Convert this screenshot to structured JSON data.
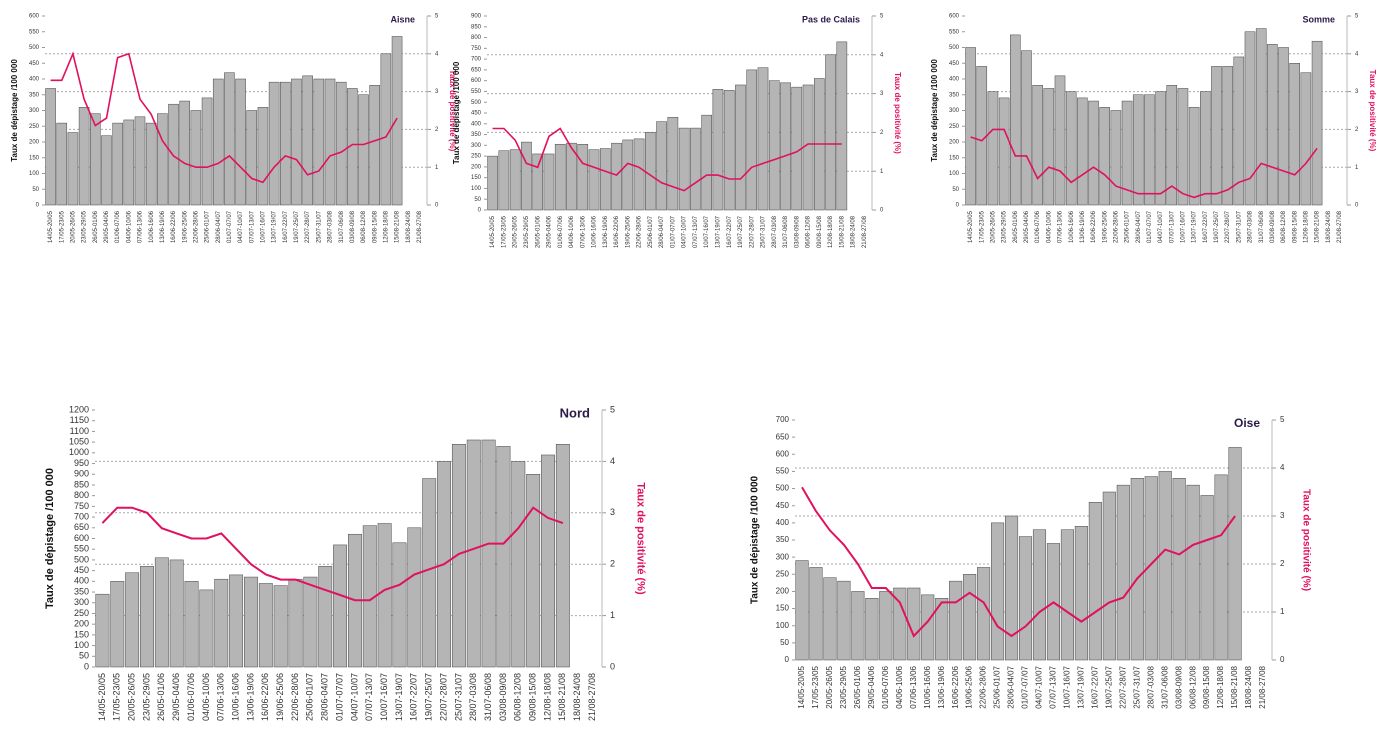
{
  "chart_data": [
    {
      "type": "combo",
      "title": "Aisne",
      "ylabel": "Taux de dépistage /100 000",
      "y2label": "Taux de positivité (%)",
      "categories": [
        "14/05-20/05",
        "17/05-23/05",
        "20/05-26/05",
        "23/05-29/05",
        "26/05-01/06",
        "29/05-04/06",
        "01/06-07/06",
        "04/06-10/06",
        "07/06-13/06",
        "10/06-16/06",
        "13/06-19/06",
        "16/06-22/06",
        "19/06-25/06",
        "22/06-28/06",
        "25/06-01/07",
        "28/06-04/07",
        "01/07-07/07",
        "04/07-10/07",
        "07/07-13/07",
        "10/07-16/07",
        "13/07-19/07",
        "16/07-22/07",
        "19/07-25/07",
        "22/07-28/07",
        "25/07-31/07",
        "28/07-03/08",
        "31/07-06/08",
        "03/08-09/08",
        "06/08-12/08",
        "09/08-15/08",
        "12/08-18/08",
        "15/08-21/08",
        "18/08-24/08",
        "21/08-27/08"
      ],
      "series": [
        {
          "color": "#b5b5b5",
          "values": [
            370,
            260,
            230,
            310,
            290,
            220,
            260,
            270,
            280,
            260,
            290,
            320,
            330,
            300,
            340,
            400,
            420,
            400,
            300,
            310,
            390,
            390,
            400,
            410,
            400,
            400,
            390,
            370,
            350,
            380,
            480,
            535,
            null,
            null
          ]
        },
        {
          "color": "#e0115f",
          "axis": "y2",
          "values": [
            3.3,
            3.3,
            4.0,
            2.8,
            2.1,
            2.3,
            3.9,
            4.0,
            2.8,
            2.4,
            1.7,
            1.3,
            1.1,
            1.0,
            1.0,
            1.1,
            1.3,
            1.0,
            0.7,
            0.6,
            1.0,
            1.3,
            1.2,
            0.8,
            0.9,
            1.3,
            1.4,
            1.6,
            1.6,
            1.7,
            1.8,
            2.3,
            null,
            null
          ]
        }
      ],
      "ylim": [
        0,
        600
      ],
      "yticks": [
        0,
        50,
        100,
        150,
        200,
        250,
        300,
        350,
        400,
        450,
        500,
        550,
        600
      ],
      "y2lim": [
        0,
        5
      ],
      "y2ticks": [
        0,
        1,
        2,
        3,
        4,
        5
      ],
      "grid": true
    },
    {
      "type": "combo",
      "title": "Pas de Calais",
      "ylabel": "Taux de dépistage /100 000",
      "y2label": "Taux de positivité (%)",
      "categories": [
        "14/05-20/05",
        "17/05-23/05",
        "20/05-26/05",
        "23/05-29/05",
        "26/05-01/06",
        "29/05-04/06",
        "01/06-07/06",
        "04/06-10/06",
        "07/06-13/06",
        "10/06-16/06",
        "13/06-19/06",
        "16/06-22/06",
        "19/06-25/06",
        "22/06-28/06",
        "25/06-01/07",
        "28/06-04/07",
        "01/07-07/07",
        "04/07-10/07",
        "07/07-13/07",
        "10/07-16/07",
        "13/07-19/07",
        "16/07-22/07",
        "19/07-25/07",
        "22/07-28/07",
        "25/07-31/07",
        "28/07-03/08",
        "31/07-06/08",
        "03/08-09/08",
        "06/08-12/08",
        "09/08-15/08",
        "12/08-18/08",
        "15/08-21/08",
        "18/08-24/08",
        "21/08-27/08"
      ],
      "series": [
        {
          "color": "#b5b5b5",
          "values": [
            250,
            275,
            280,
            315,
            260,
            260,
            305,
            310,
            305,
            280,
            285,
            310,
            325,
            330,
            360,
            410,
            430,
            380,
            380,
            440,
            560,
            555,
            580,
            650,
            660,
            600,
            590,
            570,
            580,
            610,
            720,
            780,
            null,
            null
          ]
        },
        {
          "color": "#e0115f",
          "axis": "y2",
          "values": [
            2.1,
            2.1,
            1.8,
            1.2,
            1.1,
            1.9,
            2.1,
            1.6,
            1.2,
            1.1,
            1.0,
            0.9,
            1.2,
            1.1,
            0.9,
            0.7,
            0.6,
            0.5,
            0.7,
            0.9,
            0.9,
            0.8,
            0.8,
            1.1,
            1.2,
            1.3,
            1.4,
            1.5,
            1.7,
            1.7,
            1.7,
            1.7,
            null,
            null
          ]
        }
      ],
      "ylim": [
        0,
        900
      ],
      "yticks": [
        0,
        50,
        100,
        150,
        200,
        250,
        300,
        350,
        400,
        450,
        500,
        550,
        600,
        650,
        700,
        750,
        800,
        850,
        900
      ],
      "y2lim": [
        0,
        5
      ],
      "y2ticks": [
        0,
        1,
        2,
        3,
        4,
        5
      ],
      "grid": true
    },
    {
      "type": "combo",
      "title": "Somme",
      "ylabel": "Taux de dépistage /100 000",
      "y2label": "Taux de positivité (%)",
      "categories": [
        "14/05-20/05",
        "17/05-23/05",
        "20/05-26/05",
        "23/05-29/05",
        "26/05-01/06",
        "29/05-04/06",
        "01/06-07/06",
        "04/06-10/06",
        "07/06-13/06",
        "10/06-16/06",
        "13/06-19/06",
        "16/06-22/06",
        "19/06-25/06",
        "22/06-28/06",
        "25/06-01/07",
        "28/06-04/07",
        "01/07-07/07",
        "04/07-10/07",
        "07/07-13/07",
        "10/07-16/07",
        "13/07-19/07",
        "16/07-22/07",
        "19/07-25/07",
        "22/07-28/07",
        "25/07-31/07",
        "28/07-03/08",
        "31/07-06/08",
        "03/08-09/08",
        "06/08-12/08",
        "09/08-15/08",
        "12/08-18/08",
        "15/08-21/08",
        "18/08-24/08",
        "21/08-27/08"
      ],
      "series": [
        {
          "color": "#b5b5b5",
          "values": [
            500,
            440,
            360,
            340,
            540,
            490,
            380,
            370,
            410,
            360,
            340,
            330,
            310,
            300,
            330,
            350,
            350,
            360,
            380,
            370,
            310,
            360,
            440,
            440,
            470,
            550,
            560,
            510,
            500,
            450,
            420,
            520,
            null,
            null
          ]
        },
        {
          "color": "#e0115f",
          "axis": "y2",
          "values": [
            1.8,
            1.7,
            2.0,
            2.0,
            1.3,
            1.3,
            0.7,
            1.0,
            0.9,
            0.6,
            0.8,
            1.0,
            0.8,
            0.5,
            0.4,
            0.3,
            0.3,
            0.3,
            0.5,
            0.3,
            0.2,
            0.3,
            0.3,
            0.4,
            0.6,
            0.7,
            1.1,
            1.0,
            0.9,
            0.8,
            1.1,
            1.5,
            null,
            null
          ]
        }
      ],
      "ylim": [
        0,
        600
      ],
      "yticks": [
        0,
        50,
        100,
        150,
        200,
        250,
        300,
        350,
        400,
        450,
        500,
        550,
        600
      ],
      "y2lim": [
        0,
        5
      ],
      "y2ticks": [
        0,
        1,
        2,
        3,
        4,
        5
      ],
      "grid": true
    },
    {
      "type": "combo",
      "title": "Nord",
      "ylabel": "Taux de dépistage /100 000",
      "y2label": "Taux de positivité (%)",
      "categories": [
        "14/05-20/05",
        "17/05-23/05",
        "20/05-26/05",
        "23/05-29/05",
        "26/05-01/06",
        "29/05-04/06",
        "01/06-07/06",
        "04/06-10/06",
        "07/06-13/06",
        "10/06-16/06",
        "13/06-19/06",
        "16/06-22/06",
        "19/06-25/06",
        "22/06-28/06",
        "25/06-01/07",
        "28/06-04/07",
        "01/07-07/07",
        "04/07-10/07",
        "07/07-13/07",
        "10/07-16/07",
        "13/07-19/07",
        "16/07-22/07",
        "19/07-25/07",
        "22/07-28/07",
        "25/07-31/07",
        "28/07-03/08",
        "31/07-06/08",
        "03/08-09/08",
        "06/08-12/08",
        "09/08-15/08",
        "12/08-18/08",
        "15/08-21/08",
        "18/08-24/08",
        "21/08-27/08"
      ],
      "series": [
        {
          "color": "#b5b5b5",
          "values": [
            340,
            400,
            440,
            470,
            510,
            500,
            400,
            360,
            410,
            430,
            420,
            390,
            380,
            410,
            420,
            470,
            570,
            620,
            660,
            670,
            580,
            650,
            880,
            960,
            1040,
            1060,
            1060,
            1030,
            960,
            900,
            990,
            1040,
            null,
            null
          ]
        },
        {
          "color": "#e0115f",
          "axis": "y2",
          "values": [
            2.8,
            3.1,
            3.1,
            3.0,
            2.7,
            2.6,
            2.5,
            2.5,
            2.6,
            2.3,
            2.0,
            1.8,
            1.7,
            1.7,
            1.6,
            1.5,
            1.4,
            1.3,
            1.3,
            1.5,
            1.6,
            1.8,
            1.9,
            2.0,
            2.2,
            2.3,
            2.4,
            2.4,
            2.7,
            3.1,
            2.9,
            2.8,
            null,
            null
          ]
        }
      ],
      "ylim": [
        0,
        1200
      ],
      "yticks": [
        0,
        50,
        100,
        150,
        200,
        250,
        300,
        350,
        400,
        450,
        500,
        550,
        600,
        650,
        700,
        750,
        800,
        850,
        900,
        950,
        1000,
        1050,
        1100,
        1150,
        1200
      ],
      "y2lim": [
        0,
        5
      ],
      "y2ticks": [
        0,
        1,
        2,
        3,
        4,
        5
      ],
      "grid": true
    },
    {
      "type": "combo",
      "title": "Oise",
      "ylabel": "Taux de dépistage /100 000",
      "y2label": "Taux de positivité (%)",
      "categories": [
        "14/05-20/05",
        "17/05-23/05",
        "20/05-26/05",
        "23/05-29/05",
        "26/05-01/06",
        "29/05-04/06",
        "01/06-07/06",
        "04/06-10/06",
        "07/06-13/06",
        "10/06-16/06",
        "13/06-19/06",
        "16/06-22/06",
        "19/06-25/06",
        "22/06-28/06",
        "25/06-01/07",
        "28/06-04/07",
        "01/07-07/07",
        "04/07-10/07",
        "07/07-13/07",
        "10/07-16/07",
        "13/07-19/07",
        "16/07-22/07",
        "19/07-25/07",
        "22/07-28/07",
        "25/07-31/07",
        "28/07-03/08",
        "31/07-06/08",
        "03/08-09/08",
        "06/08-12/08",
        "09/08-15/08",
        "12/08-18/08",
        "15/08-21/08",
        "18/08-24/08",
        "21/08-27/08"
      ],
      "series": [
        {
          "color": "#b5b5b5",
          "values": [
            290,
            270,
            240,
            230,
            200,
            180,
            200,
            210,
            210,
            190,
            180,
            230,
            250,
            270,
            400,
            420,
            360,
            380,
            340,
            380,
            390,
            460,
            490,
            510,
            530,
            535,
            550,
            530,
            510,
            480,
            540,
            620,
            null,
            null
          ]
        },
        {
          "color": "#e0115f",
          "axis": "y2",
          "values": [
            3.6,
            3.1,
            2.7,
            2.4,
            2.0,
            1.5,
            1.5,
            1.2,
            0.5,
            0.8,
            1.2,
            1.2,
            1.4,
            1.2,
            0.7,
            0.5,
            0.7,
            1.0,
            1.2,
            1.0,
            0.8,
            1.0,
            1.2,
            1.3,
            1.7,
            2.0,
            2.3,
            2.2,
            2.4,
            2.5,
            2.6,
            3.0,
            null,
            null
          ]
        }
      ],
      "ylim": [
        0,
        700
      ],
      "yticks": [
        0,
        50,
        100,
        150,
        200,
        250,
        300,
        350,
        400,
        450,
        500,
        550,
        600,
        650,
        700
      ],
      "y2lim": [
        0,
        5
      ],
      "y2ticks": [
        0,
        1,
        2,
        3,
        4,
        5
      ],
      "grid": true
    }
  ]
}
